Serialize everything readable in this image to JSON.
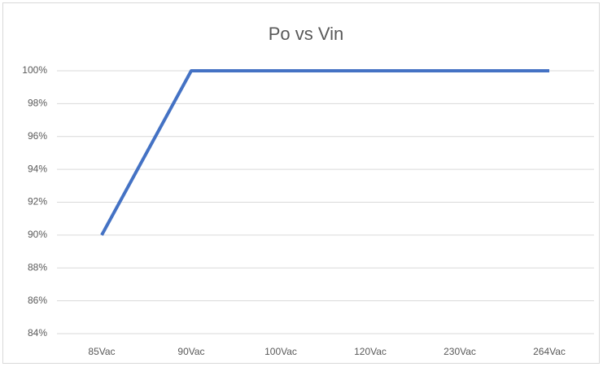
{
  "chart_data": {
    "type": "line",
    "title": "Po vs Vin",
    "categories": [
      "85Vac",
      "90Vac",
      "100Vac",
      "120Vac",
      "230Vac",
      "264Vac"
    ],
    "series": [
      {
        "name": "Po",
        "color": "#4472c4",
        "values": [
          90,
          100,
          100,
          100,
          100,
          100
        ]
      }
    ],
    "ylim": [
      84,
      100
    ],
    "yticks": [
      {
        "value": 84,
        "label": "84%"
      },
      {
        "value": 86,
        "label": "86%"
      },
      {
        "value": 88,
        "label": "88%"
      },
      {
        "value": 90,
        "label": "90%"
      },
      {
        "value": 92,
        "label": "92%"
      },
      {
        "value": 94,
        "label": "94%"
      },
      {
        "value": 96,
        "label": "96%"
      },
      {
        "value": 98,
        "label": "98%"
      },
      {
        "value": 100,
        "label": "100%"
      }
    ],
    "grid": true
  }
}
